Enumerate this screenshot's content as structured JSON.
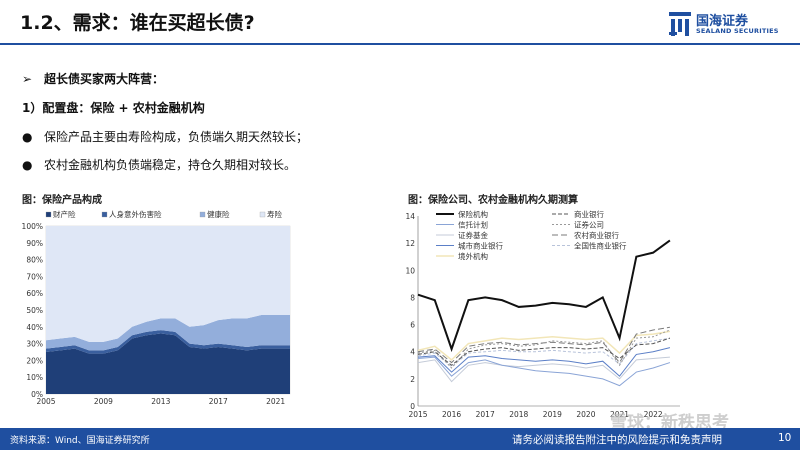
{
  "header": {
    "title": "1.2、需求：谁在买超长债?",
    "logo_cn": "国海证券",
    "logo_en": "SEALAND SECURITIES",
    "accent": "#1f4fa0"
  },
  "bullets": {
    "b1_glyph": "➢",
    "b1": "超长债买家两大阵营：",
    "b2": "1）配置盘：保险 + 农村金融机构",
    "b3_glyph": "●",
    "b3": "保险产品主要由寿险构成，负债端久期天然较长；",
    "b4_glyph": "●",
    "b4": "农村金融机构负债端稳定，持仓久期相对较长。"
  },
  "captions": {
    "left": "图：保险产品构成",
    "right": "图：保险公司、农村金融机构久期测算"
  },
  "footer": {
    "source": "资料来源：Wind、国海证券研究所",
    "disclaimer": "请务必阅读报告附注中的风险提示和免责声明",
    "page": "10",
    "watermark": "雪球：新秩思考"
  },
  "chart_data": [
    {
      "type": "area",
      "stacked": true,
      "x": [
        2005,
        2006,
        2007,
        2008,
        2009,
        2010,
        2011,
        2012,
        2013,
        2014,
        2015,
        2016,
        2017,
        2018,
        2019,
        2020,
        2021,
        2022
      ],
      "series": [
        {
          "name": "财产险",
          "color": "#1f3f78",
          "values": [
            25,
            26,
            27,
            24,
            24,
            26,
            33,
            35,
            36,
            35,
            28,
            27,
            28,
            27,
            26,
            27,
            27,
            27
          ]
        },
        {
          "name": "人身意外伤害险",
          "color": "#3a5f9e",
          "values": [
            2,
            2,
            2,
            2,
            2,
            2,
            2,
            2,
            2,
            2,
            2,
            2,
            2,
            2,
            2,
            2,
            2,
            2
          ]
        },
        {
          "name": "健康险",
          "color": "#93aedb",
          "values": [
            5,
            5,
            5,
            5,
            5,
            5,
            5,
            6,
            7,
            8,
            10,
            12,
            14,
            16,
            17,
            18,
            18,
            18
          ]
        },
        {
          "name": "寿险",
          "color": "#dfe7f6",
          "values": [
            68,
            67,
            66,
            69,
            69,
            67,
            60,
            57,
            55,
            55,
            60,
            59,
            56,
            55,
            55,
            53,
            53,
            53
          ]
        }
      ],
      "ylim": [
        0,
        100
      ],
      "yticks": [
        "0%",
        "10%",
        "20%",
        "30%",
        "40%",
        "50%",
        "60%",
        "70%",
        "80%",
        "90%",
        "100%"
      ],
      "xticks": [
        "2005",
        "2009",
        "2013",
        "2017",
        "2021"
      ],
      "legend": "top"
    },
    {
      "type": "line",
      "x": [
        2015.0,
        2015.5,
        2016.0,
        2016.5,
        2017.0,
        2017.5,
        2018.0,
        2018.5,
        2019.0,
        2019.5,
        2020.0,
        2020.5,
        2021.0,
        2021.5,
        2022.0,
        2022.5
      ],
      "ylim": [
        0,
        14
      ],
      "yticks": [
        "0",
        "2",
        "4",
        "6",
        "8",
        "10",
        "12",
        "14"
      ],
      "xticks": [
        "2015",
        "2016",
        "2017",
        "2018",
        "2019",
        "2020",
        "2021",
        "2022"
      ],
      "legend": "top-left",
      "series": [
        {
          "name": "保险机构",
          "color": "#111111",
          "width": 2,
          "dash": "",
          "values": [
            8.2,
            7.8,
            4.2,
            7.8,
            8.0,
            7.8,
            7.3,
            7.4,
            7.6,
            7.5,
            7.3,
            8.0,
            5.0,
            11.0,
            11.3,
            12.2
          ]
        },
        {
          "name": "商业银行",
          "color": "#555555",
          "width": 1,
          "dash": "4,2",
          "values": [
            3.8,
            4.0,
            3.0,
            4.0,
            4.2,
            4.3,
            4.1,
            4.2,
            4.3,
            4.3,
            4.2,
            4.3,
            3.5,
            4.5,
            4.6,
            5.0
          ]
        },
        {
          "name": "信托计划",
          "color": "#8aa4d6",
          "width": 1,
          "dash": "",
          "values": [
            3.5,
            3.6,
            2.2,
            3.2,
            3.4,
            3.0,
            2.8,
            2.6,
            2.5,
            2.4,
            2.2,
            2.0,
            1.5,
            2.5,
            2.8,
            3.2
          ]
        },
        {
          "name": "证券公司",
          "color": "#999999",
          "width": 1,
          "dash": "2,2",
          "values": [
            3.9,
            4.1,
            2.8,
            4.2,
            4.5,
            4.6,
            4.4,
            4.5,
            4.8,
            4.7,
            4.6,
            4.8,
            3.0,
            5.0,
            5.1,
            5.6
          ]
        },
        {
          "name": "证券基金",
          "color": "#c4cbd8",
          "width": 1,
          "dash": "",
          "values": [
            3.2,
            3.4,
            1.8,
            3.0,
            3.2,
            3.0,
            2.9,
            3.0,
            3.1,
            3.0,
            2.8,
            3.0,
            2.0,
            3.4,
            3.5,
            3.6
          ]
        },
        {
          "name": "农村商业银行",
          "color": "#7a7a7a",
          "width": 1,
          "dash": "6,3",
          "values": [
            4.0,
            4.2,
            3.2,
            4.4,
            4.6,
            4.7,
            4.5,
            4.6,
            4.7,
            4.6,
            4.5,
            4.7,
            3.2,
            5.3,
            5.6,
            5.8
          ]
        },
        {
          "name": "城市商业银行",
          "color": "#5b7fc7",
          "width": 1,
          "dash": "",
          "values": [
            3.6,
            3.7,
            2.5,
            3.6,
            3.7,
            3.5,
            3.4,
            3.3,
            3.4,
            3.3,
            3.1,
            3.3,
            2.2,
            3.8,
            4.0,
            4.3
          ]
        },
        {
          "name": "全国性商业银行",
          "color": "#b8c3da",
          "width": 1,
          "dash": "3,2",
          "values": [
            3.7,
            3.9,
            2.9,
            3.9,
            4.0,
            4.1,
            4.0,
            4.0,
            4.1,
            4.0,
            3.9,
            4.0,
            3.1,
            4.6,
            4.8,
            5.0
          ]
        },
        {
          "name": "境外机构",
          "color": "#f2e6b8",
          "width": 1.5,
          "dash": "",
          "values": [
            4.1,
            4.4,
            3.4,
            4.6,
            4.8,
            5.0,
            4.9,
            5.0,
            5.1,
            5.0,
            4.9,
            5.0,
            3.9,
            5.2,
            5.3,
            5.5
          ]
        }
      ]
    }
  ]
}
